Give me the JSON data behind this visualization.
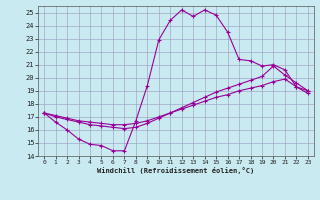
{
  "xlabel": "Windchill (Refroidissement éolien,°C)",
  "x_ticks": [
    0,
    1,
    2,
    3,
    4,
    5,
    6,
    7,
    8,
    9,
    10,
    11,
    12,
    13,
    14,
    15,
    16,
    17,
    18,
    19,
    20,
    21,
    22,
    23
  ],
  "ylim": [
    14,
    25.5
  ],
  "xlim": [
    -0.5,
    23.5
  ],
  "y_ticks": [
    14,
    15,
    16,
    17,
    18,
    19,
    20,
    21,
    22,
    23,
    24,
    25
  ],
  "bg_color": "#c8eaf0",
  "line_color": "#990099",
  "grid_color": "#9999bb",
  "line1_x": [
    0,
    1,
    2,
    3,
    4,
    5,
    6,
    7,
    8,
    9,
    10,
    11,
    12,
    13,
    14,
    15,
    16,
    17,
    18,
    19,
    20,
    21,
    22,
    23
  ],
  "line1_y": [
    17.3,
    16.6,
    16.0,
    15.3,
    14.9,
    14.8,
    14.4,
    14.4,
    16.7,
    19.4,
    22.9,
    24.4,
    25.2,
    24.7,
    25.2,
    24.8,
    23.5,
    21.4,
    21.3,
    20.9,
    21.0,
    20.6,
    19.3,
    19.0
  ],
  "line2_x": [
    0,
    1,
    2,
    3,
    4,
    5,
    6,
    7,
    8,
    9,
    10,
    11,
    12,
    13,
    14,
    15,
    16,
    17,
    18,
    19,
    20,
    21,
    22,
    23
  ],
  "line2_y": [
    17.3,
    17.0,
    16.8,
    16.6,
    16.4,
    16.3,
    16.2,
    16.1,
    16.2,
    16.5,
    16.9,
    17.3,
    17.7,
    18.1,
    18.5,
    18.9,
    19.2,
    19.5,
    19.8,
    20.1,
    20.9,
    20.2,
    19.6,
    19.0
  ],
  "line3_x": [
    0,
    1,
    2,
    3,
    4,
    5,
    6,
    7,
    8,
    9,
    10,
    11,
    12,
    13,
    14,
    15,
    16,
    17,
    18,
    19,
    20,
    21,
    22,
    23
  ],
  "line3_y": [
    17.3,
    17.1,
    16.9,
    16.7,
    16.6,
    16.5,
    16.4,
    16.4,
    16.5,
    16.7,
    17.0,
    17.3,
    17.6,
    17.9,
    18.2,
    18.5,
    18.7,
    19.0,
    19.2,
    19.4,
    19.7,
    19.9,
    19.3,
    18.8
  ]
}
